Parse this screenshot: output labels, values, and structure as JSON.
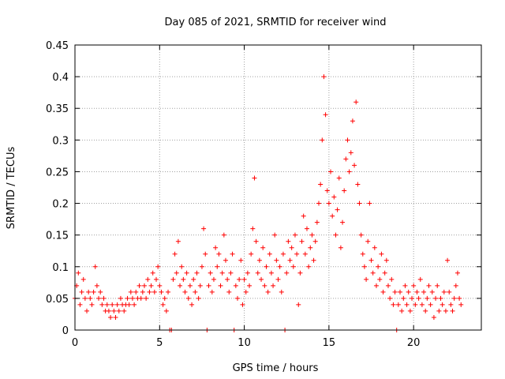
{
  "chart_data": {
    "type": "scatter",
    "title": "Day 085 of 2021, SRMTID for receiver wind",
    "xlabel": "GPS time / hours",
    "ylabel": "SRMTID / TECUs",
    "xlim": [
      0,
      24
    ],
    "ylim": [
      0,
      0.45
    ],
    "x_ticks": [
      0,
      5,
      10,
      15,
      20
    ],
    "y_ticks": [
      0,
      0.05,
      0.1,
      0.15,
      0.2,
      0.25,
      0.3,
      0.35,
      0.4,
      0.45
    ],
    "x_tick_labels": [
      "0",
      "5",
      "10",
      "15",
      "20"
    ],
    "y_tick_labels": [
      "0",
      "0.05",
      "0.1",
      "0.15",
      "0.2",
      "0.25",
      "0.3",
      "0.35",
      "0.4",
      "0.45"
    ],
    "grid": true,
    "marker": "+",
    "series": [
      {
        "name": "SRMTID",
        "color": "#ff0000",
        "points": [
          [
            0.0,
            0.05
          ],
          [
            0.1,
            0.07
          ],
          [
            0.2,
            0.09
          ],
          [
            0.3,
            0.04
          ],
          [
            0.4,
            0.06
          ],
          [
            0.5,
            0.08
          ],
          [
            0.6,
            0.05
          ],
          [
            0.7,
            0.03
          ],
          [
            0.8,
            0.06
          ],
          [
            0.9,
            0.05
          ],
          [
            1.0,
            0.04
          ],
          [
            1.1,
            0.06
          ],
          [
            1.2,
            0.1
          ],
          [
            1.3,
            0.07
          ],
          [
            1.4,
            0.05
          ],
          [
            1.5,
            0.06
          ],
          [
            1.6,
            0.04
          ],
          [
            1.7,
            0.05
          ],
          [
            1.8,
            0.03
          ],
          [
            1.9,
            0.04
          ],
          [
            2.0,
            0.03
          ],
          [
            2.1,
            0.02
          ],
          [
            2.2,
            0.04
          ],
          [
            2.3,
            0.03
          ],
          [
            2.4,
            0.02
          ],
          [
            2.5,
            0.04
          ],
          [
            2.6,
            0.03
          ],
          [
            2.7,
            0.05
          ],
          [
            2.8,
            0.04
          ],
          [
            2.9,
            0.03
          ],
          [
            3.0,
            0.04
          ],
          [
            3.1,
            0.05
          ],
          [
            3.2,
            0.04
          ],
          [
            3.3,
            0.06
          ],
          [
            3.4,
            0.05
          ],
          [
            3.5,
            0.04
          ],
          [
            3.6,
            0.06
          ],
          [
            3.7,
            0.05
          ],
          [
            3.8,
            0.07
          ],
          [
            3.9,
            0.05
          ],
          [
            4.0,
            0.06
          ],
          [
            4.1,
            0.07
          ],
          [
            4.2,
            0.05
          ],
          [
            4.3,
            0.08
          ],
          [
            4.4,
            0.06
          ],
          [
            4.5,
            0.07
          ],
          [
            4.6,
            0.09
          ],
          [
            4.7,
            0.06
          ],
          [
            4.8,
            0.08
          ],
          [
            4.9,
            0.1
          ],
          [
            5.0,
            0.07
          ],
          [
            5.1,
            0.06
          ],
          [
            5.2,
            0.04
          ],
          [
            5.3,
            0.05
          ],
          [
            5.4,
            0.03
          ],
          [
            5.5,
            0.06
          ],
          [
            5.6,
            0.0
          ],
          [
            5.7,
            0.0
          ],
          [
            5.8,
            0.08
          ],
          [
            5.9,
            0.12
          ],
          [
            6.0,
            0.09
          ],
          [
            6.1,
            0.14
          ],
          [
            6.2,
            0.07
          ],
          [
            6.3,
            0.1
          ],
          [
            6.4,
            0.08
          ],
          [
            6.5,
            0.06
          ],
          [
            6.6,
            0.09
          ],
          [
            6.7,
            0.05
          ],
          [
            6.8,
            0.07
          ],
          [
            6.9,
            0.04
          ],
          [
            7.0,
            0.08
          ],
          [
            7.1,
            0.06
          ],
          [
            7.2,
            0.09
          ],
          [
            7.3,
            0.05
          ],
          [
            7.4,
            0.07
          ],
          [
            7.5,
            0.1
          ],
          [
            7.6,
            0.16
          ],
          [
            7.7,
            0.12
          ],
          [
            7.8,
            0.0
          ],
          [
            7.9,
            0.07
          ],
          [
            8.0,
            0.09
          ],
          [
            8.1,
            0.06
          ],
          [
            8.2,
            0.08
          ],
          [
            8.3,
            0.13
          ],
          [
            8.4,
            0.1
          ],
          [
            8.5,
            0.12
          ],
          [
            8.6,
            0.07
          ],
          [
            8.7,
            0.09
          ],
          [
            8.8,
            0.15
          ],
          [
            8.9,
            0.11
          ],
          [
            9.0,
            0.08
          ],
          [
            9.1,
            0.06
          ],
          [
            9.2,
            0.09
          ],
          [
            9.3,
            0.12
          ],
          [
            9.4,
            0.0
          ],
          [
            9.5,
            0.07
          ],
          [
            9.6,
            0.05
          ],
          [
            9.7,
            0.08
          ],
          [
            9.8,
            0.11
          ],
          [
            9.9,
            0.04
          ],
          [
            10.0,
            0.08
          ],
          [
            10.1,
            0.06
          ],
          [
            10.2,
            0.09
          ],
          [
            10.3,
            0.07
          ],
          [
            10.4,
            0.12
          ],
          [
            10.5,
            0.16
          ],
          [
            10.6,
            0.24
          ],
          [
            10.7,
            0.14
          ],
          [
            10.8,
            0.09
          ],
          [
            10.9,
            0.11
          ],
          [
            11.0,
            0.08
          ],
          [
            11.1,
            0.13
          ],
          [
            11.2,
            0.07
          ],
          [
            11.3,
            0.1
          ],
          [
            11.4,
            0.06
          ],
          [
            11.5,
            0.12
          ],
          [
            11.6,
            0.09
          ],
          [
            11.7,
            0.07
          ],
          [
            11.8,
            0.15
          ],
          [
            11.9,
            0.11
          ],
          [
            12.0,
            0.08
          ],
          [
            12.1,
            0.1
          ],
          [
            12.2,
            0.06
          ],
          [
            12.3,
            0.12
          ],
          [
            12.4,
            0.0
          ],
          [
            12.5,
            0.09
          ],
          [
            12.6,
            0.14
          ],
          [
            12.7,
            0.11
          ],
          [
            12.8,
            0.13
          ],
          [
            12.9,
            0.1
          ],
          [
            13.0,
            0.15
          ],
          [
            13.1,
            0.12
          ],
          [
            13.2,
            0.04
          ],
          [
            13.3,
            0.09
          ],
          [
            13.4,
            0.14
          ],
          [
            13.5,
            0.18
          ],
          [
            13.6,
            0.12
          ],
          [
            13.7,
            0.16
          ],
          [
            13.8,
            0.1
          ],
          [
            13.9,
            0.13
          ],
          [
            14.0,
            0.15
          ],
          [
            14.1,
            0.11
          ],
          [
            14.2,
            0.14
          ],
          [
            14.3,
            0.17
          ],
          [
            14.4,
            0.2
          ],
          [
            14.5,
            0.23
          ],
          [
            14.6,
            0.3
          ],
          [
            14.7,
            0.4
          ],
          [
            14.8,
            0.34
          ],
          [
            14.9,
            0.22
          ],
          [
            15.0,
            0.2
          ],
          [
            15.1,
            0.25
          ],
          [
            15.2,
            0.18
          ],
          [
            15.3,
            0.21
          ],
          [
            15.4,
            0.15
          ],
          [
            15.5,
            0.19
          ],
          [
            15.6,
            0.24
          ],
          [
            15.7,
            0.13
          ],
          [
            15.8,
            0.17
          ],
          [
            15.9,
            0.22
          ],
          [
            16.0,
            0.27
          ],
          [
            16.1,
            0.3
          ],
          [
            16.2,
            0.25
          ],
          [
            16.3,
            0.28
          ],
          [
            16.4,
            0.33
          ],
          [
            16.5,
            0.26
          ],
          [
            16.6,
            0.36
          ],
          [
            16.7,
            0.23
          ],
          [
            16.8,
            0.2
          ],
          [
            16.9,
            0.15
          ],
          [
            17.0,
            0.12
          ],
          [
            17.1,
            0.1
          ],
          [
            17.2,
            0.08
          ],
          [
            17.3,
            0.14
          ],
          [
            17.4,
            0.2
          ],
          [
            17.5,
            0.11
          ],
          [
            17.6,
            0.09
          ],
          [
            17.7,
            0.13
          ],
          [
            17.8,
            0.07
          ],
          [
            17.9,
            0.1
          ],
          [
            18.0,
            0.08
          ],
          [
            18.1,
            0.12
          ],
          [
            18.2,
            0.06
          ],
          [
            18.3,
            0.09
          ],
          [
            18.4,
            0.11
          ],
          [
            18.5,
            0.07
          ],
          [
            18.6,
            0.05
          ],
          [
            18.7,
            0.08
          ],
          [
            18.8,
            0.04
          ],
          [
            18.9,
            0.06
          ],
          [
            19.0,
            0.0
          ],
          [
            19.1,
            0.04
          ],
          [
            19.2,
            0.06
          ],
          [
            19.3,
            0.03
          ],
          [
            19.4,
            0.05
          ],
          [
            19.5,
            0.07
          ],
          [
            19.6,
            0.04
          ],
          [
            19.7,
            0.06
          ],
          [
            19.8,
            0.03
          ],
          [
            19.9,
            0.05
          ],
          [
            20.0,
            0.07
          ],
          [
            20.1,
            0.04
          ],
          [
            20.2,
            0.06
          ],
          [
            20.3,
            0.05
          ],
          [
            20.4,
            0.08
          ],
          [
            20.5,
            0.04
          ],
          [
            20.6,
            0.06
          ],
          [
            20.7,
            0.03
          ],
          [
            20.8,
            0.05
          ],
          [
            20.9,
            0.07
          ],
          [
            21.0,
            0.04
          ],
          [
            21.1,
            0.06
          ],
          [
            21.2,
            0.02
          ],
          [
            21.3,
            0.05
          ],
          [
            21.4,
            0.07
          ],
          [
            21.5,
            0.03
          ],
          [
            21.6,
            0.05
          ],
          [
            21.7,
            0.04
          ],
          [
            21.8,
            0.06
          ],
          [
            21.9,
            0.03
          ],
          [
            22.0,
            0.11
          ],
          [
            22.1,
            0.06
          ],
          [
            22.2,
            0.04
          ],
          [
            22.3,
            0.03
          ],
          [
            22.4,
            0.05
          ],
          [
            22.5,
            0.07
          ],
          [
            22.6,
            0.09
          ],
          [
            22.7,
            0.05
          ],
          [
            22.8,
            0.04
          ]
        ]
      }
    ]
  }
}
